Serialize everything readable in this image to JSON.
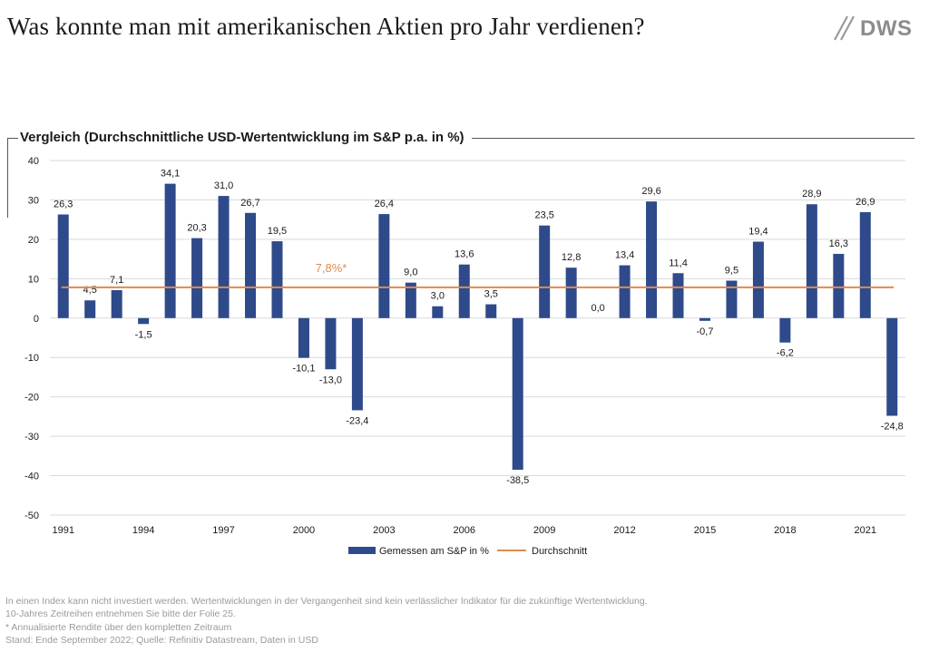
{
  "header": {
    "title": "Was konnte man mit amerikanischen Aktien pro Jahr verdienen?",
    "logo_text": "DWS"
  },
  "chart_heading": "Vergleich (Durchschnittliche USD-Wertentwicklung im S&P p.a. in %)",
  "chart_data": {
    "type": "bar",
    "title": "Vergleich (Durchschnittliche USD-Wertentwicklung im S&P p.a. in %)",
    "categories": [
      "1991",
      "1992",
      "1993",
      "1994",
      "1995",
      "1996",
      "1997",
      "1998",
      "1999",
      "2000",
      "2001",
      "2002",
      "2003",
      "2004",
      "2005",
      "2006",
      "2007",
      "2008",
      "2009",
      "2010",
      "2011",
      "2012",
      "2013",
      "2014",
      "2015",
      "2016",
      "2017",
      "2018",
      "2019",
      "2020",
      "2021",
      "2022"
    ],
    "tick_labels": [
      "1991",
      "1994",
      "1997",
      "2000",
      "2003",
      "2006",
      "2009",
      "2012",
      "2015",
      "2018",
      "2021"
    ],
    "series": [
      {
        "name": "Gemessen am S&P in %",
        "type": "bar",
        "color": "#2E4A8B",
        "values": [
          26.3,
          4.5,
          7.1,
          -1.5,
          34.1,
          20.3,
          31.0,
          26.7,
          19.5,
          -10.1,
          -13.0,
          -23.4,
          26.4,
          9.0,
          3.0,
          13.6,
          3.5,
          -38.5,
          23.5,
          12.8,
          0.0,
          13.4,
          29.6,
          11.4,
          -0.7,
          9.5,
          19.4,
          -6.2,
          28.9,
          16.3,
          26.9,
          -24.8
        ],
        "labels": [
          "26,3",
          "4,5",
          "7,1",
          "-1,5",
          "34,1",
          "20,3",
          "31,0",
          "26,7",
          "19,5",
          "-10,1",
          "-13,0",
          "-23,4",
          "26,4",
          "9,0",
          "3,0",
          "13,6",
          "3,5",
          "-38,5",
          "23,5",
          "12,8",
          "0,0",
          "13,4",
          "29,6",
          "11,4",
          "-0,7",
          "9,5",
          "19,4",
          "-6,2",
          "28,9",
          "16,3",
          "26,9",
          "-24,8"
        ]
      },
      {
        "name": "Durchschnitt",
        "type": "line",
        "color": "#E08A4F",
        "value": 7.8,
        "label": "7,8%*"
      }
    ],
    "ylim": [
      -50,
      40
    ],
    "yticks": [
      40,
      30,
      20,
      10,
      0,
      -10,
      -20,
      -30,
      -40,
      -50
    ],
    "xlabel": "",
    "ylabel": "",
    "grid": true,
    "legend": "bottom-center"
  },
  "footer": {
    "lines": [
      "In einen Index kann nicht investiert werden. Wertentwicklungen in der Vergangenheit sind kein verlässlicher Indikator für die zukünftige Wertentwicklung.",
      "10-Jahres Zeitreihen entnehmen Sie bitte der Folie 25.",
      "* Annualisierte Rendite  über den kompletten Zeitraum",
      "Stand: Ende September 2022; Quelle: Refinitiv Datastream, Daten in USD"
    ]
  }
}
